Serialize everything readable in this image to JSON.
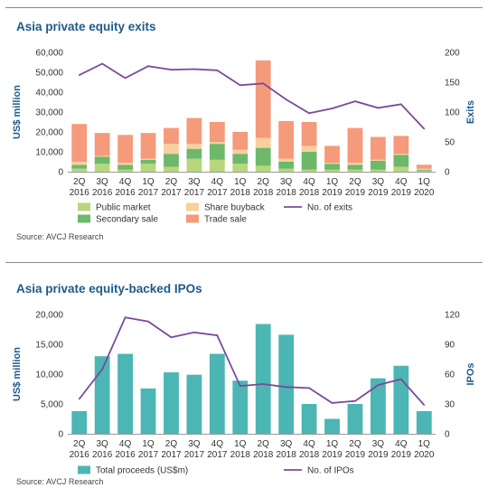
{
  "chart_data": [
    {
      "type": "bar",
      "title": "Asia private equity exits",
      "ylabel": "US$ million",
      "y2label": "Exits",
      "ylim": [
        0,
        60000
      ],
      "y2lim": [
        0,
        200
      ],
      "yticks": [
        "0",
        "10,000",
        "20,000",
        "30,000",
        "40,000",
        "50,000",
        "60,000"
      ],
      "y2ticks": [
        "0",
        "50",
        "100",
        "150",
        "200"
      ],
      "categories": [
        "2Q 2016",
        "3Q 2016",
        "4Q 2016",
        "1Q 2017",
        "2Q 2017",
        "3Q 2017",
        "4Q 2017",
        "1Q 2018",
        "2Q 2018",
        "3Q 2018",
        "4Q 2018",
        "1Q 2019",
        "2Q 2019",
        "3Q 2019",
        "4Q 2019",
        "1Q 2020"
      ],
      "stacked": true,
      "series": [
        {
          "name": "Public market",
          "color": "#b7d77a",
          "values": [
            1500,
            4000,
            1000,
            4000,
            2500,
            6500,
            6000,
            4000,
            3000,
            1500,
            1000,
            1000,
            1000,
            1000,
            2500,
            500
          ]
        },
        {
          "name": "Secondary sale",
          "color": "#6db86b",
          "values": [
            2000,
            3500,
            2500,
            2000,
            6500,
            5000,
            8000,
            5000,
            9000,
            3500,
            9000,
            3000,
            2500,
            4500,
            6000,
            500
          ]
        },
        {
          "name": "Share buyback",
          "color": "#f9cf9d",
          "values": [
            1500,
            500,
            1000,
            500,
            5000,
            2500,
            1000,
            2000,
            5000,
            1500,
            3000,
            500,
            1000,
            500,
            500,
            500
          ]
        },
        {
          "name": "Trade sale",
          "color": "#f59a7a",
          "values": [
            19000,
            11500,
            14000,
            13000,
            8000,
            13000,
            10000,
            9000,
            39000,
            19000,
            12000,
            8500,
            17500,
            11500,
            9000,
            2000
          ]
        }
      ],
      "line": {
        "name": "No. of exits",
        "color": "#7a4a9a",
        "axis": "right",
        "values": [
          162,
          181,
          157,
          177,
          171,
          172,
          170,
          145,
          148,
          121,
          98,
          106,
          118,
          107,
          113,
          72
        ]
      },
      "legend_position": "bottom",
      "source": "Source: AVCJ Research"
    },
    {
      "type": "bar",
      "title": "Asia private equity-backed IPOs",
      "ylabel": "US$ million",
      "y2label": "IPOs",
      "ylim": [
        0,
        20000
      ],
      "y2lim": [
        0,
        120
      ],
      "yticks": [
        "0",
        "5,000",
        "10,000",
        "15,000",
        "20,000"
      ],
      "y2ticks": [
        "0",
        "30",
        "60",
        "90",
        "120"
      ],
      "categories": [
        "2Q 2016",
        "3Q 2016",
        "4Q 2016",
        "1Q 2017",
        "2Q 2017",
        "3Q 2017",
        "4Q 2017",
        "1Q 2018",
        "2Q 2018",
        "3Q 2018",
        "4Q 2018",
        "1Q 2019",
        "2Q 2019",
        "3Q 2019",
        "4Q 2019",
        "1Q 2020"
      ],
      "series": [
        {
          "name": "Total proceeds (US$m)",
          "color": "#4bb6b3",
          "values": [
            3800,
            13000,
            13400,
            7600,
            10300,
            9900,
            13400,
            8900,
            18400,
            16600,
            5000,
            2500,
            5000,
            9300,
            11400,
            3800
          ]
        }
      ],
      "line": {
        "name": "No. of IPOs",
        "color": "#7a4a9a",
        "axis": "right",
        "values": [
          35,
          65,
          117,
          113,
          97,
          102,
          99,
          48,
          50,
          47,
          46,
          31,
          33,
          49,
          55,
          29
        ]
      },
      "legend_position": "bottom",
      "source": "Source: AVCJ Research"
    }
  ]
}
